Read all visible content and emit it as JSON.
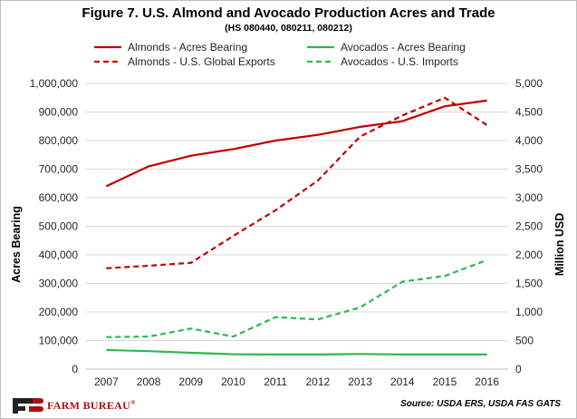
{
  "chart_data": {
    "type": "line",
    "title": "Figure 7. U.S. Almond and Avocado Production Acres and Trade",
    "subtitle": "(HS 080440, 080211, 080212)",
    "categories": [
      "2007",
      "2008",
      "2009",
      "2010",
      "2011",
      "2012",
      "2013",
      "2014",
      "2015",
      "2016"
    ],
    "y_left": {
      "label": "Acres Bearing",
      "min": 0,
      "max": 1000000,
      "step": 100000,
      "ticks": [
        "0",
        "100,000",
        "200,000",
        "300,000",
        "400,000",
        "500,000",
        "600,000",
        "700,000",
        "800,000",
        "900,000",
        "1,000,000"
      ]
    },
    "y_right": {
      "label": "Million USD",
      "min": 0,
      "max": 5000,
      "step": 500,
      "ticks": [
        "0",
        "500",
        "1,000",
        "1,500",
        "2,000",
        "2,500",
        "3,000",
        "3,500",
        "4,000",
        "4,500",
        "5,000"
      ]
    },
    "series": [
      {
        "name": "Almonds - Acres Bearing",
        "axis": "left",
        "color": "#c00000",
        "dash": false,
        "values": [
          640000,
          710000,
          747000,
          770000,
          800000,
          820000,
          848000,
          868000,
          920000,
          940000
        ]
      },
      {
        "name": "Almonds - U.S. Global Exports",
        "axis": "right",
        "color": "#c00000",
        "dash": true,
        "values": [
          1765,
          1810,
          1860,
          2330,
          2780,
          3300,
          4070,
          4440,
          4750,
          4270
        ]
      },
      {
        "name": "Avocados - Acres Bearing",
        "axis": "left",
        "color": "#2db84d",
        "dash": false,
        "values": [
          67000,
          63000,
          57000,
          52000,
          51000,
          51000,
          53000,
          51000,
          51000,
          51000
        ]
      },
      {
        "name": "Avocados - U.S. Imports",
        "axis": "right",
        "color": "#2db84d",
        "dash": true,
        "values": [
          560,
          570,
          710,
          570,
          910,
          870,
          1080,
          1530,
          1630,
          1910
        ]
      }
    ],
    "legend_position": "top",
    "grid": true
  },
  "footer": {
    "source": "Source: USDA ERS, USDA FAS GATS",
    "logo_text": "FARM BUREAU",
    "logo_mark": "®"
  }
}
